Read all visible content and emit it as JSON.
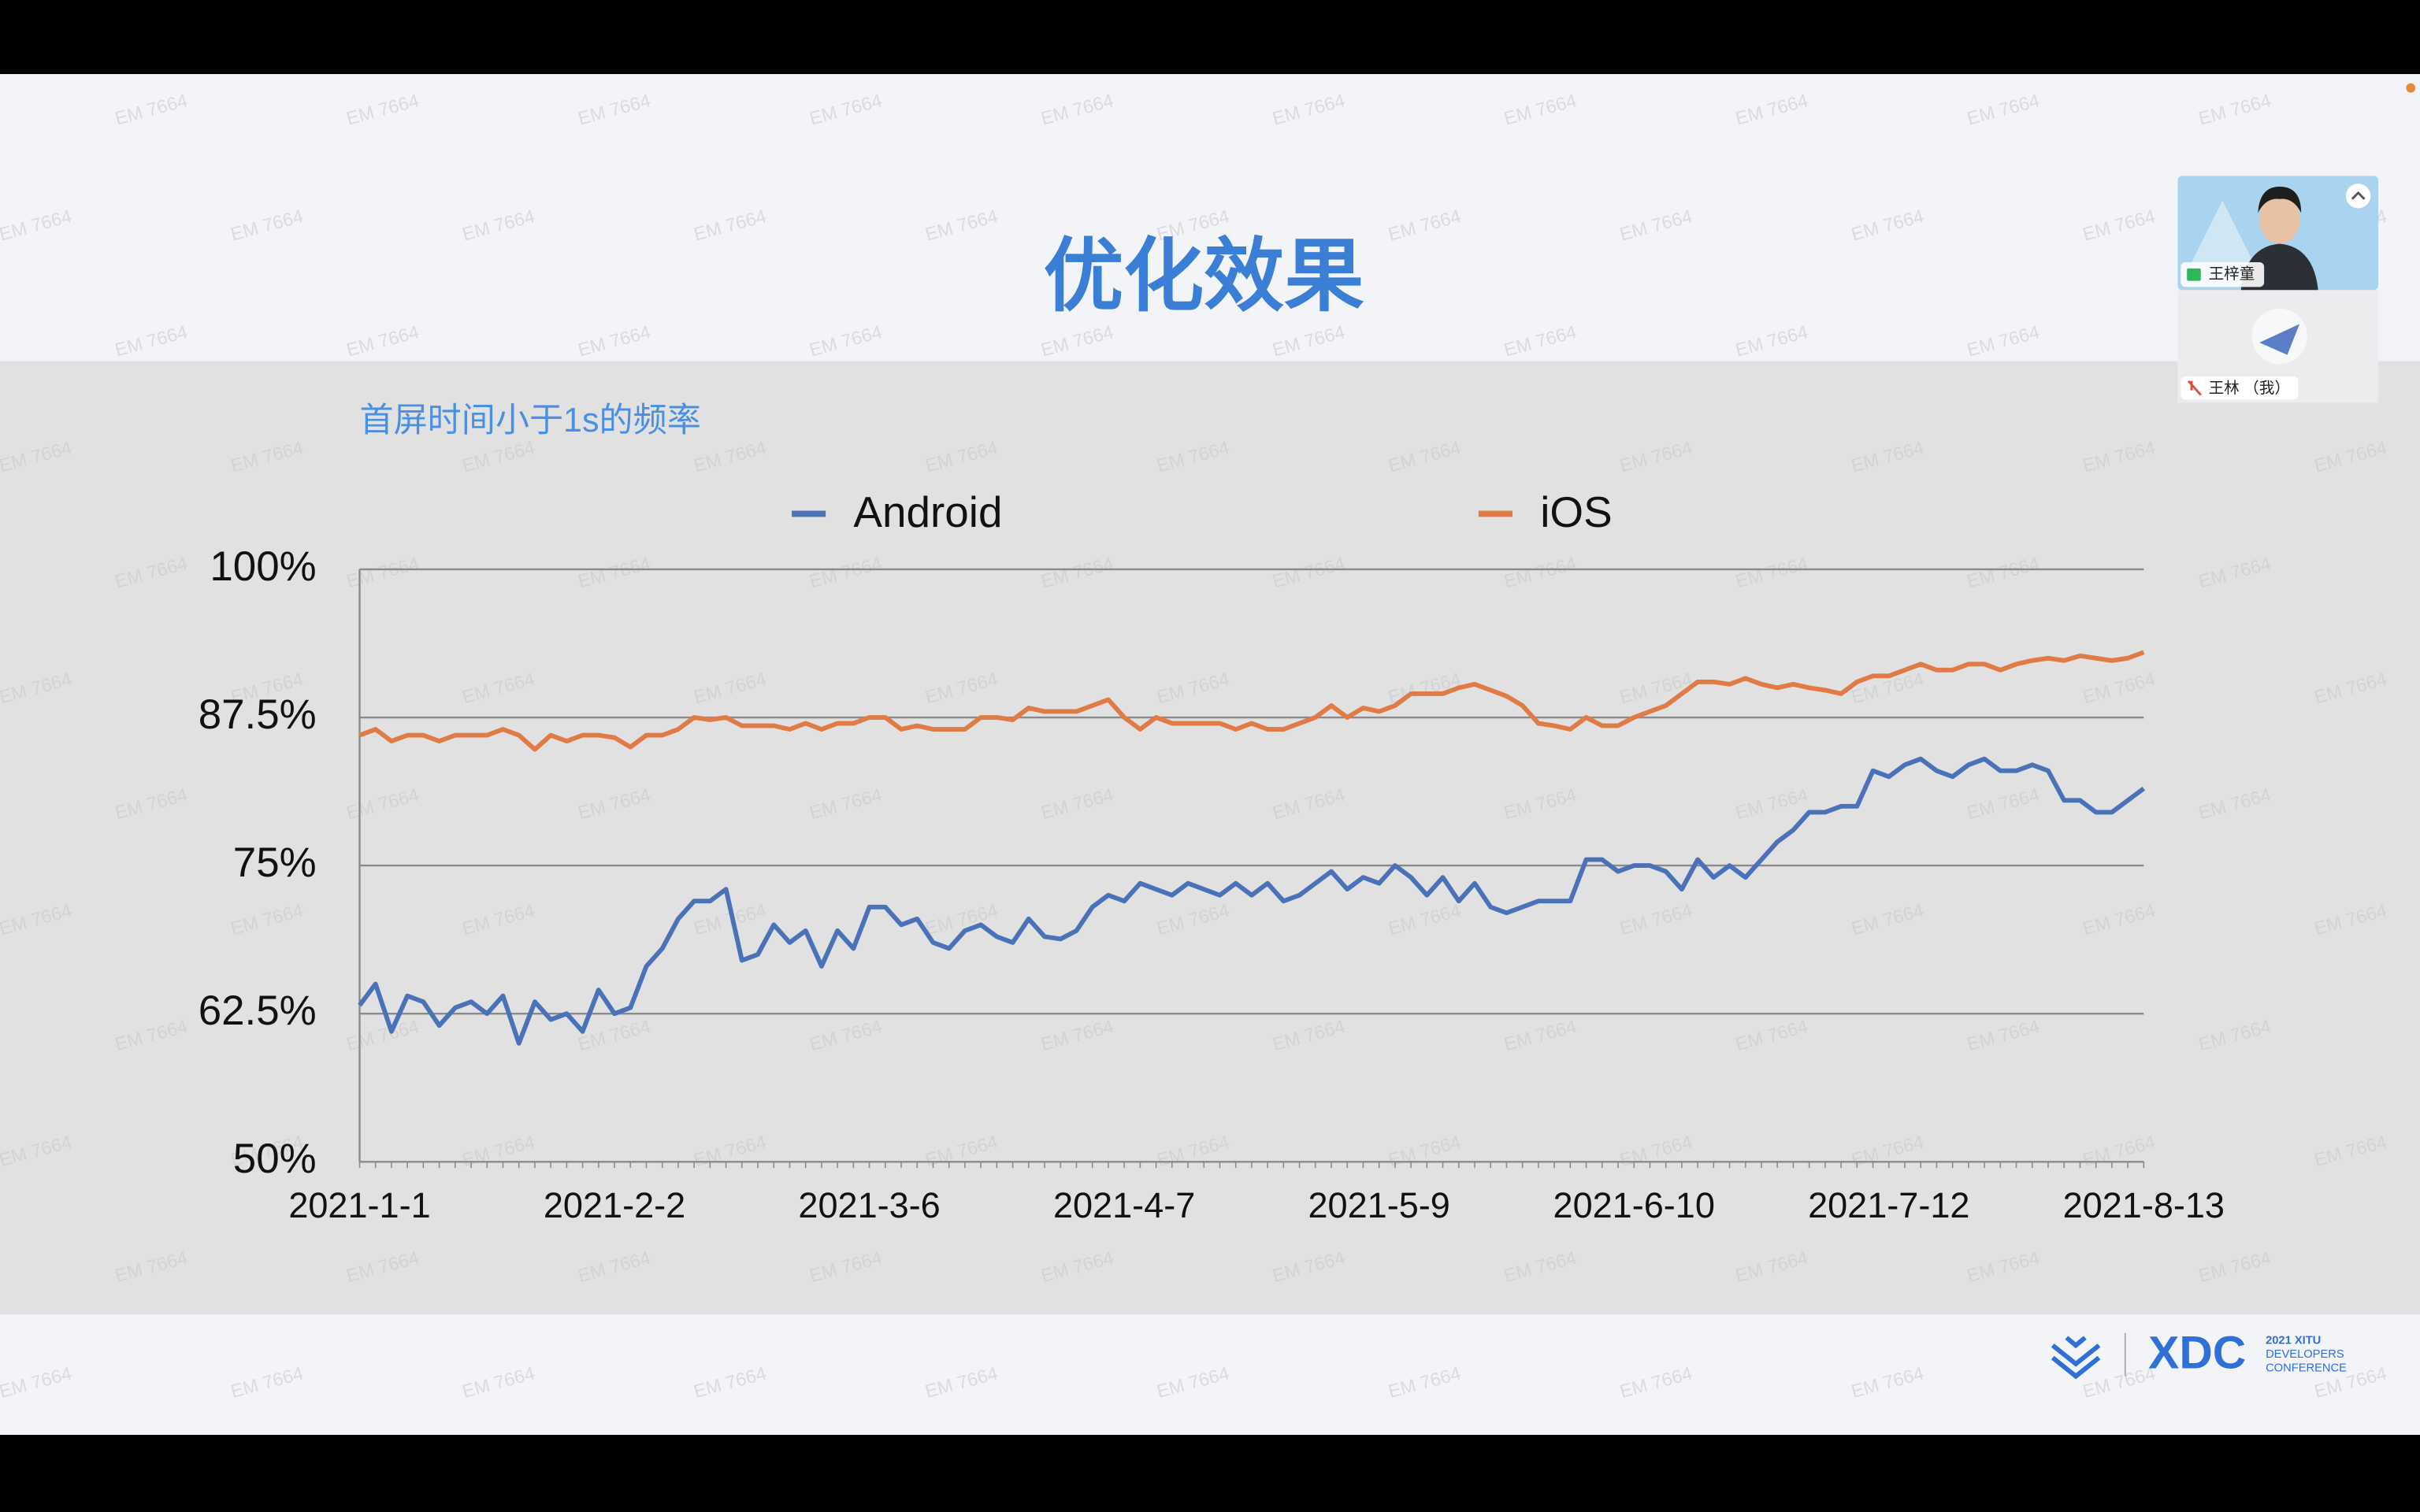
{
  "slide": {
    "title": "优化效果"
  },
  "chart_data": {
    "type": "line",
    "title": "首屏时间小于1s的频率",
    "categories": [
      "2021-1-1",
      null,
      null,
      null,
      null,
      null,
      null,
      null,
      null,
      null,
      null,
      null,
      null,
      null,
      null,
      null,
      "2021-2-2",
      null,
      null,
      null,
      null,
      null,
      null,
      null,
      null,
      null,
      null,
      null,
      null,
      null,
      null,
      null,
      "2021-3-6",
      null,
      null,
      null,
      null,
      null,
      null,
      null,
      null,
      null,
      null,
      null,
      null,
      null,
      null,
      null,
      "2021-4-7",
      null,
      null,
      null,
      null,
      null,
      null,
      null,
      null,
      null,
      null,
      null,
      null,
      null,
      null,
      null,
      "2021-5-9",
      null,
      null,
      null,
      null,
      null,
      null,
      null,
      null,
      null,
      null,
      null,
      null,
      null,
      null,
      null,
      "2021-6-10",
      null,
      null,
      null,
      null,
      null,
      null,
      null,
      null,
      null,
      null,
      null,
      null,
      null,
      null,
      null,
      "2021-7-12",
      null,
      null,
      null,
      null,
      null,
      null,
      null,
      null,
      null,
      null,
      null,
      null,
      null,
      null,
      null,
      "2021-8-13"
    ],
    "series": [
      {
        "name": "Android",
        "color": "#4a72b8",
        "values": [
          63.2,
          65,
          61,
          64,
          63.5,
          61.5,
          63,
          63.5,
          62.5,
          64,
          60,
          63.5,
          62,
          62.5,
          61,
          64.5,
          62.5,
          63,
          66.5,
          68,
          70.5,
          72,
          72,
          73,
          67,
          67.5,
          70,
          68.5,
          69.5,
          66.5,
          69.5,
          68,
          71.5,
          71.5,
          70,
          70.5,
          68.5,
          68,
          69.5,
          70,
          69,
          68.5,
          70.5,
          69,
          68.8,
          69.5,
          71.5,
          72.5,
          72,
          73.5,
          73,
          72.5,
          73.5,
          73,
          72.5,
          73.5,
          72.5,
          73.5,
          72,
          72.5,
          73.5,
          74.5,
          73,
          74,
          73.5,
          75,
          74,
          72.5,
          74,
          72,
          73.5,
          71.5,
          71,
          71.5,
          72,
          72,
          72,
          75.5,
          75.5,
          74.5,
          75,
          75,
          74.5,
          73,
          75.5,
          74,
          75,
          74,
          75.5,
          77,
          78,
          79.5,
          79.5,
          80,
          80,
          83,
          82.5,
          83.5,
          84,
          83,
          82.5,
          83.5,
          84,
          83,
          83,
          83.5,
          83,
          80.5,
          80.5,
          79.5,
          79.5,
          80.5,
          81.5
        ]
      },
      {
        "name": "iOS",
        "color": "#e07b45",
        "values": [
          86,
          86.5,
          85.5,
          86,
          86,
          85.5,
          86,
          86,
          86,
          86.5,
          86,
          84.8,
          86,
          85.5,
          86,
          86,
          85.8,
          85,
          86,
          86,
          86.5,
          87.5,
          87.3,
          87.5,
          86.8,
          86.8,
          86.8,
          86.5,
          87,
          86.5,
          87,
          87,
          87.5,
          87.5,
          86.5,
          86.8,
          86.5,
          86.5,
          86.5,
          87.5,
          87.5,
          87.3,
          88.3,
          88,
          88,
          88,
          88.5,
          89,
          87.5,
          86.5,
          87.5,
          87,
          87,
          87,
          87,
          86.5,
          87,
          86.5,
          86.5,
          87,
          87.5,
          88.5,
          87.5,
          88.3,
          88,
          88.5,
          89.5,
          89.5,
          89.5,
          90,
          90.3,
          89.8,
          89.3,
          88.5,
          87,
          86.8,
          86.5,
          87.5,
          86.8,
          86.8,
          87.5,
          88,
          88.5,
          89.5,
          90.5,
          90.5,
          90.3,
          90.8,
          90.3,
          90,
          90.3,
          90,
          89.8,
          89.5,
          90.5,
          91,
          91,
          91.5,
          92,
          91.5,
          91.5,
          92,
          92,
          91.5,
          92,
          92.3,
          92.5,
          92.3,
          92.7,
          92.5,
          92.3,
          92.5,
          93
        ]
      }
    ],
    "ylim": [
      50,
      100
    ],
    "yticks": [
      {
        "value": 50,
        "label": "50%"
      },
      {
        "value": 62.5,
        "label": "62.5%"
      },
      {
        "value": 75,
        "label": "75%"
      },
      {
        "value": 87.5,
        "label": "87.5%"
      },
      {
        "value": 100,
        "label": "100%"
      }
    ],
    "grid": true,
    "legend": "top"
  },
  "video_call": {
    "participants": [
      {
        "name": "王梓童"
      },
      {
        "name": "王林 （我）"
      }
    ]
  },
  "logo": {
    "name": "XDC",
    "tagline": [
      "2021 XITU",
      "DEVELOPERS",
      "CONFERENCE"
    ]
  },
  "watermark": "EM 7664"
}
